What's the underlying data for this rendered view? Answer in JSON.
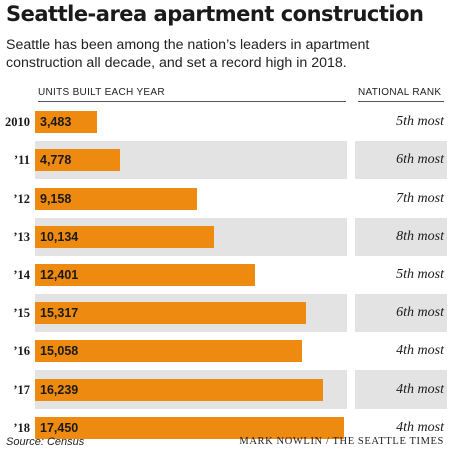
{
  "title": "Seattle-area apartment construction",
  "subtitle": "Seattle has been among the nation’s leaders in apartment construction all decade, and set a record high in 2018.",
  "columns": {
    "units": "UNITS BUILT EACH YEAR",
    "rank": "NATIONAL RANK"
  },
  "colors": {
    "bar": "#ee8a0f",
    "band": "#e3e3e3"
  },
  "chart_data": {
    "type": "bar",
    "orientation": "horizontal",
    "categories": [
      "2010",
      "’11",
      "’12",
      "’13",
      "’14",
      "’15",
      "’16",
      "’17",
      "’18"
    ],
    "values": [
      3483,
      4778,
      9158,
      10134,
      12401,
      15317,
      15058,
      16239,
      17450
    ],
    "value_labels": [
      "3,483",
      "4,778",
      "9,158",
      "10,134",
      "12,401",
      "15,317",
      "15,058",
      "16,239",
      "17,450"
    ],
    "ranks": [
      "5th most",
      "6th most",
      "7th most",
      "8th most",
      "5th most",
      "6th most",
      "4th most",
      "4th most",
      "4th most"
    ],
    "xlim": [
      0,
      17450
    ],
    "grid": false
  },
  "footer": {
    "source": "Source: Census",
    "credit": "MARK NOWLIN / THE SEATTLE TIMES"
  }
}
